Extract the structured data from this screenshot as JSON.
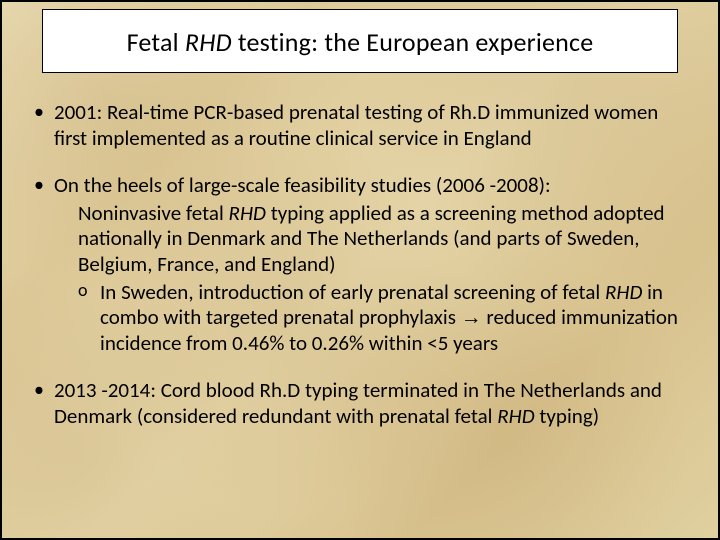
{
  "title": {
    "prefix": "Fetal ",
    "ital": "RHD",
    "suffix": " testing: the European experience"
  },
  "bullets": [
    {
      "text": "2001: Real-time PCR-based prenatal testing of Rh.D immunized women first implemented as a routine clinical service in England"
    },
    {
      "text_prefix": "On the heels of large-scale feasibility studies (2006 -2008):",
      "sub_plain": {
        "pre": "Noninvasive fetal ",
        "ital": "RHD",
        "post": " typing applied as a screening method adopted nationally in Denmark and The Netherlands (and parts of Sweden, Belgium, France, and England)"
      },
      "sub_o": {
        "pre": "In Sweden, introduction of early prenatal screening of fetal ",
        "ital": "RHD",
        "mid": " in combo with targeted prenatal prophylaxis ",
        "arrow": "→",
        "post": " reduced immunization incidence from 0.46% to 0.26% within <5 years"
      }
    },
    {
      "pre": "2013 -2014: Cord blood Rh.D typing terminated in The Netherlands and Denmark (considered redundant with prenatal fetal ",
      "ital": "RHD",
      "post": " typing)"
    }
  ]
}
